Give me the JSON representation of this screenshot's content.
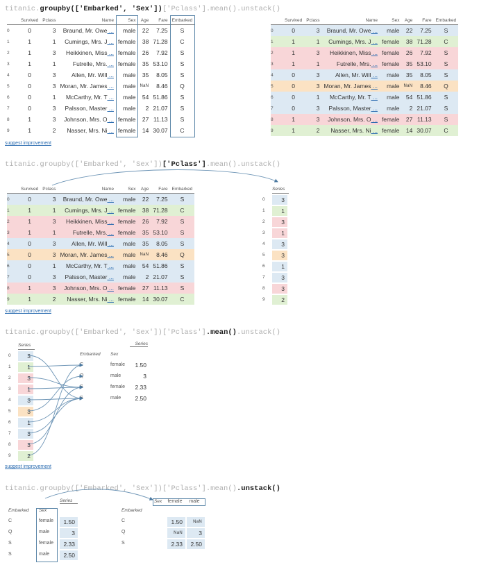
{
  "code": {
    "s1_a": "titanic.",
    "s1_b": "groupby(['Embarked', 'Sex'])",
    "s1_c": "['Pclass'].mean().unstack()",
    "s2_a": "titanic.groupby(['Embarked', 'Sex'])",
    "s2_b": "['Pclass']",
    "s2_c": ".mean().unstack()",
    "s3_a": "titanic.groupby(['Embarked', 'Sex'])['Pclass']",
    "s3_b": ".mean()",
    "s3_c": ".unstack()",
    "s4_a": "titanic.groupby(['Embarked', 'Sex'])['Pclass'].mean()",
    "s4_b": ".unstack()"
  },
  "suggest_label": "suggest improvement",
  "columns": [
    "Survived",
    "Pclass",
    "Name",
    "Sex",
    "Age",
    "Fare",
    "Embarked"
  ],
  "rows": [
    {
      "idx": "0",
      "survived": "0",
      "pclass": "3",
      "name": "Braund, Mr. Owe",
      "sex": "male",
      "age": "22",
      "fare": "7.25",
      "embarked": "S",
      "color": "S"
    },
    {
      "idx": "1",
      "survived": "1",
      "pclass": "1",
      "name": "Cumings, Mrs. J",
      "sex": "female",
      "age": "38",
      "fare": "71.28",
      "embarked": "C",
      "color": "C"
    },
    {
      "idx": "2",
      "survived": "1",
      "pclass": "3",
      "name": "Heikkinen, Miss",
      "sex": "female",
      "age": "26",
      "fare": "7.92",
      "embarked": "S",
      "color": "R"
    },
    {
      "idx": "3",
      "survived": "1",
      "pclass": "1",
      "name": "Futrelle, Mrs.",
      "sex": "female",
      "age": "35",
      "fare": "53.10",
      "embarked": "S",
      "color": "R"
    },
    {
      "idx": "4",
      "survived": "0",
      "pclass": "3",
      "name": "Allen, Mr. Will",
      "sex": "male",
      "age": "35",
      "fare": "8.05",
      "embarked": "S",
      "color": "S"
    },
    {
      "idx": "5",
      "survived": "0",
      "pclass": "3",
      "name": "Moran, Mr. James",
      "sex": "male",
      "age": "NaN",
      "fare": "8.46",
      "embarked": "Q",
      "color": "Q"
    },
    {
      "idx": "6",
      "survived": "0",
      "pclass": "1",
      "name": "McCarthy, Mr. T",
      "sex": "male",
      "age": "54",
      "fare": "51.86",
      "embarked": "S",
      "color": "S"
    },
    {
      "idx": "7",
      "survived": "0",
      "pclass": "3",
      "name": "Palsson, Master",
      "sex": "male",
      "age": "2",
      "fare": "21.07",
      "embarked": "S",
      "color": "S"
    },
    {
      "idx": "8",
      "survived": "1",
      "pclass": "3",
      "name": "Johnson, Mrs. O",
      "sex": "female",
      "age": "27",
      "fare": "11.13",
      "embarked": "S",
      "color": "R"
    },
    {
      "idx": "9",
      "survived": "1",
      "pclass": "2",
      "name": "Nasser, Mrs. Ni",
      "sex": "female",
      "age": "14",
      "fare": "30.07",
      "embarked": "C",
      "color": "C"
    }
  ],
  "series_label": "Series",
  "series_values": [
    "3",
    "1",
    "3",
    "1",
    "3",
    "3",
    "1",
    "3",
    "3",
    "2"
  ],
  "grouped": {
    "level0_label": "Embarked",
    "level1_label": "Sex",
    "rows": [
      {
        "embarked": "C",
        "sex": "female",
        "value": "1.50"
      },
      {
        "embarked": "Q",
        "sex": "male",
        "value": "3"
      },
      {
        "embarked": "S",
        "sex": "female",
        "value": "2.33"
      },
      {
        "embarked": "S",
        "sex": "male",
        "value": "2.50"
      }
    ]
  },
  "unstacked": {
    "corner_label": "Sex",
    "columns": [
      "female",
      "male"
    ],
    "index_label": "Embarked",
    "rows": [
      {
        "embarked": "C",
        "female": "1.50",
        "male": "NaN"
      },
      {
        "embarked": "Q",
        "female": "NaN",
        "male": "3"
      },
      {
        "embarked": "S",
        "female": "2.33",
        "male": "2.50"
      }
    ]
  },
  "colors": {
    "S": "#dde9f3",
    "C": "#e0f0d3",
    "Q": "#fbe2c3",
    "R": "#f8d6d8",
    "box": "#5b86a8",
    "link": "#2b6cb0"
  }
}
